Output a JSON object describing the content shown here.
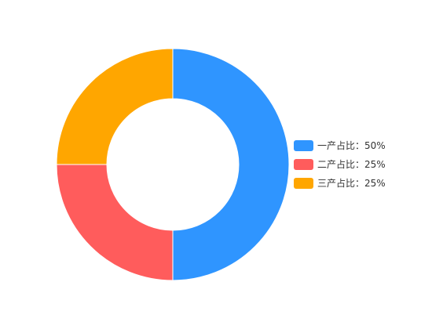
{
  "chart_data": {
    "type": "pie",
    "variant": "donut",
    "title": "",
    "categories": [
      "一产占比",
      "二产占比",
      "三产占比"
    ],
    "values": [
      0.5,
      0.25,
      0.25
    ],
    "display_labels": [
      "一产占比：50%",
      "二产占比：25%",
      "三产占比：25%"
    ],
    "colors": [
      "#2f95ff",
      "#ff5c5c",
      "#ffa600"
    ],
    "start_angle_deg": 90,
    "direction": "clockwise",
    "legend_position": "right"
  }
}
